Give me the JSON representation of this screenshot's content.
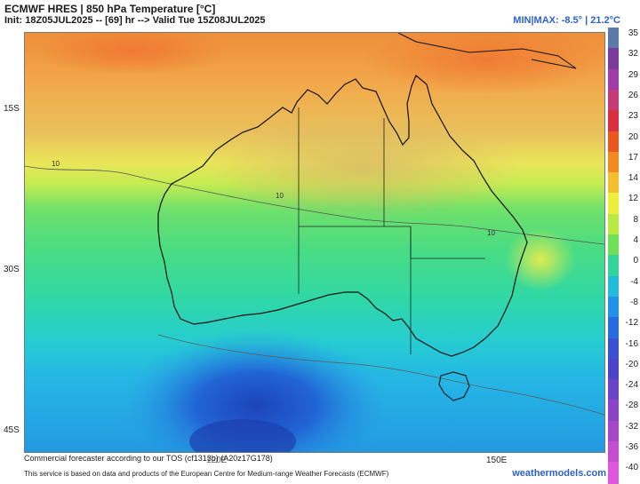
{
  "header": {
    "title": "ECMWF HRES | 850 hPa Temperature [°C]",
    "init_line": "Init: 18Z05JUL2025 -- [69] hr --> Valid Tue 15Z08JUL2025",
    "minmax": "MIN|MAX: -8.5° | 21.2°C"
  },
  "map": {
    "lat_labels": [
      "15S",
      "30S",
      "45S"
    ],
    "lon_labels": [
      "150E",
      "120E"
    ],
    "contour_label": "10",
    "colors": {
      "ocean_north": "#f29a3a",
      "land_north": "#e8b45a",
      "warm_band": "#e6f04a",
      "mid": "#58de78",
      "cool": "#27d6bf",
      "cold_ocean": "#2aa6ea",
      "coldest": "#1f57c8",
      "coastline": "#111111"
    }
  },
  "colorbar": {
    "labels": [
      "35",
      "32",
      "29",
      "26",
      "23",
      "20",
      "17",
      "14",
      "12",
      "8",
      "4",
      "0",
      "-4",
      "-8",
      "-12",
      "-16",
      "-20",
      "-24",
      "-28",
      "-32",
      "-36",
      "-40"
    ],
    "colors": [
      "#5a7ba8",
      "#7a3c9a",
      "#a13ba7",
      "#c43b77",
      "#d8303e",
      "#e9561f",
      "#f18a1f",
      "#f3bf2c",
      "#ecee3c",
      "#b9ea44",
      "#6fdf58",
      "#34d49b",
      "#22bcd9",
      "#2292e6",
      "#276be0",
      "#3a50d0",
      "#4a45c8",
      "#6a43c6",
      "#8b44c8",
      "#a548c8",
      "#c54ed0",
      "#e056dc"
    ]
  },
  "footer": {
    "line1": "Commercial forecaster according to our TOS (cf1313b) (A20z17G178)",
    "line2": "This service is based on data and products of the European Centre for Medium-range Weather Forecasts (ECMWF)",
    "brand": "weathermodels.com"
  }
}
